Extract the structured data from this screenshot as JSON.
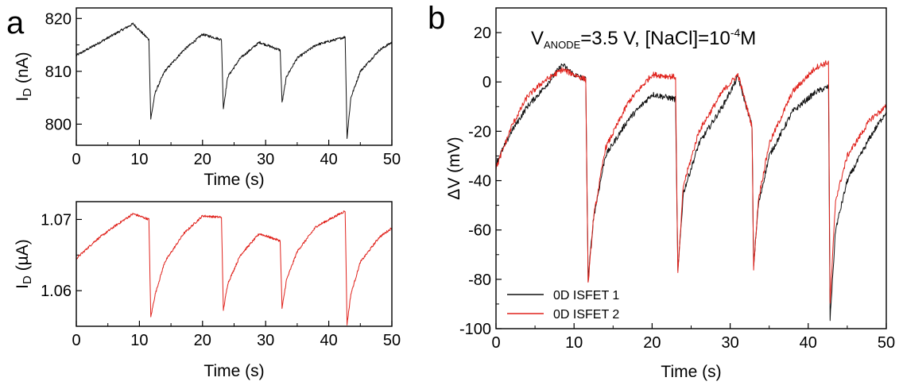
{
  "colors": {
    "black": "#111111",
    "red": "#e0221c"
  },
  "chart_data": [
    {
      "id": "a-top",
      "panel_label": "a",
      "type": "line",
      "title": "",
      "xlabel": "Time (s)",
      "ylabel_main": "I",
      "ylabel_sub": "D",
      "ylabel_rest": " (nA)",
      "xlim": [
        0,
        50
      ],
      "ylim": [
        796,
        822
      ],
      "xticks": [
        0,
        10,
        20,
        30,
        40,
        50
      ],
      "yticks": [
        800,
        810,
        820
      ],
      "xtick_labels": [
        "0",
        "10",
        "20",
        "30",
        "40",
        "50"
      ],
      "ytick_labels": [
        "800",
        "810",
        "820"
      ],
      "series": [
        {
          "color": "#111111",
          "x": [
            0,
            3,
            6,
            9,
            11.5,
            11.8,
            12.5,
            14,
            17,
            20,
            23.0,
            23.3,
            24,
            26,
            29,
            32.3,
            32.6,
            33.3,
            35,
            38,
            42.6,
            42.9,
            43.5,
            45,
            48,
            50
          ],
          "y": [
            813,
            815,
            817,
            819,
            816,
            801,
            806,
            810,
            814,
            817,
            816,
            803,
            809,
            812.5,
            815.5,
            814,
            804,
            809,
            812.5,
            815,
            816.5,
            797.5,
            805,
            810,
            814,
            815.5
          ]
        }
      ]
    },
    {
      "id": "a-bottom",
      "panel_label": "",
      "type": "line",
      "title": "",
      "xlabel": "Time (s)",
      "ylabel_main": "I",
      "ylabel_sub": "D",
      "ylabel_rest": " (µA)",
      "xlim": [
        0,
        50
      ],
      "ylim": [
        1.055,
        1.0725
      ],
      "xticks": [
        0,
        10,
        20,
        30,
        40,
        50
      ],
      "yticks": [
        1.06,
        1.07
      ],
      "xtick_labels": [
        "0",
        "10",
        "20",
        "30",
        "40",
        "50"
      ],
      "ytick_labels": [
        "1.06",
        "1.07"
      ],
      "series": [
        {
          "color": "#e0221c",
          "x": [
            0,
            3,
            6,
            9,
            11.5,
            11.8,
            12.5,
            14,
            17,
            20,
            23.0,
            23.3,
            24,
            26,
            29,
            32.3,
            32.6,
            33.3,
            35,
            38,
            42.6,
            42.9,
            43.5,
            45,
            48,
            50
          ],
          "y": [
            1.0645,
            1.067,
            1.069,
            1.0708,
            1.07,
            1.0563,
            1.0595,
            1.064,
            1.068,
            1.0705,
            1.0703,
            1.0573,
            1.061,
            1.065,
            1.068,
            1.067,
            1.0575,
            1.0615,
            1.0655,
            1.069,
            1.0712,
            1.0553,
            1.0595,
            1.064,
            1.0675,
            1.0688
          ]
        }
      ]
    },
    {
      "id": "b",
      "panel_label": "b",
      "type": "line",
      "title": "",
      "annotation": {
        "p1": "V",
        "p2": "ANODE",
        "p3": "=3.5 V, [NaCl]=10",
        "p4": "-4",
        "p5": "M"
      },
      "xlabel": "Time (s)",
      "ylabel": "ΔV (mV)",
      "xlim": [
        0,
        50
      ],
      "ylim": [
        -100,
        30
      ],
      "xticks": [
        0,
        10,
        20,
        30,
        40,
        50
      ],
      "yticks": [
        -100,
        -80,
        -60,
        -40,
        -20,
        0,
        20
      ],
      "xtick_labels": [
        "0",
        "10",
        "20",
        "30",
        "40",
        "50"
      ],
      "ytick_labels": [
        "-100",
        "-80",
        "-60",
        "-40",
        "-20",
        "0",
        "20"
      ],
      "legend_position": "bottom-left",
      "series": [
        {
          "name": "0D ISFET 1",
          "color": "#111111",
          "x": [
            0,
            2,
            4,
            6,
            8.5,
            10,
            11.5,
            11.8,
            12.5,
            14,
            17,
            20,
            23.0,
            23.3,
            24,
            26,
            29,
            31,
            32.8,
            33.0,
            33.6,
            35,
            38,
            41,
            42.6,
            42.8,
            43.5,
            45,
            48,
            50
          ],
          "y": [
            -33,
            -20,
            -10,
            -3,
            7,
            3,
            1,
            -80,
            -55,
            -30,
            -15,
            -5,
            -7,
            -77,
            -45,
            -25,
            -10,
            2,
            -18,
            -75,
            -50,
            -30,
            -12,
            -4,
            -2,
            -96,
            -60,
            -40,
            -22,
            -12
          ]
        },
        {
          "name": "0D ISFET 2",
          "color": "#e0221c",
          "x": [
            0,
            2,
            4,
            6,
            8.5,
            10,
            11.5,
            11.8,
            12.5,
            14,
            17,
            20,
            23.0,
            23.3,
            24,
            26,
            29,
            31,
            32.8,
            33.0,
            33.6,
            35,
            38,
            41,
            42.6,
            42.8,
            43.5,
            45,
            48,
            50
          ],
          "y": [
            -35,
            -18,
            -6,
            0,
            5,
            3,
            1,
            -82,
            -55,
            -27,
            -8,
            3,
            2,
            -78,
            -42,
            -20,
            -4,
            3,
            -18,
            -76,
            -48,
            -25,
            -4,
            6,
            8,
            -90,
            -48,
            -30,
            -15,
            -10
          ]
        }
      ]
    }
  ]
}
